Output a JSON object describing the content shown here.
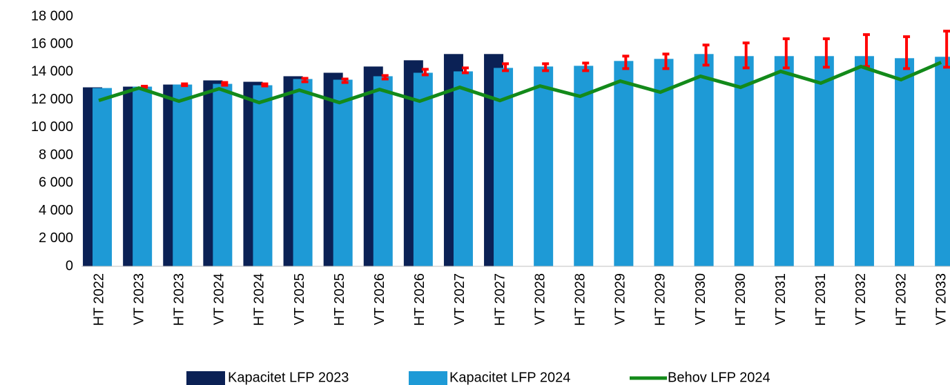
{
  "chart_data": {
    "type": "bar",
    "categories": [
      "HT 2022",
      "VT 2023",
      "HT 2023",
      "VT 2024",
      "HT 2024",
      "VT 2025",
      "HT 2025",
      "VT 2026",
      "HT 2026",
      "VT 2027",
      "HT 2027",
      "VT 2028",
      "HT 2028",
      "VT 2029",
      "HT 2029",
      "VT 2030",
      "HT 2030",
      "VT 2031",
      "HT 2031",
      "VT 2032",
      "HT 2032",
      "VT 2033"
    ],
    "series": [
      {
        "name": "Kapacitet LFP 2023",
        "type": "bar",
        "color": "#0b2155",
        "values": [
          12900,
          12950,
          13100,
          13400,
          13300,
          13700,
          13950,
          14400,
          14850,
          15300,
          15300,
          null,
          null,
          null,
          null,
          null,
          null,
          null,
          null,
          null,
          null,
          null
        ]
      },
      {
        "name": "Kapacitet LFP 2024",
        "type": "bar",
        "color": "#1e9ad6",
        "error_color": "#ff0000",
        "values": [
          12850,
          12950,
          13100,
          13150,
          13050,
          13500,
          13450,
          13700,
          13950,
          14050,
          14300,
          14400,
          14450,
          14800,
          14950,
          15300,
          15150,
          15150,
          15150,
          15150,
          15000,
          15100
        ],
        "error_minus": [
          null,
          50,
          80,
          100,
          50,
          200,
          200,
          200,
          150,
          100,
          200,
          300,
          350,
          550,
          700,
          800,
          850,
          850,
          800,
          750,
          750,
          750
        ],
        "error_plus": [
          null,
          30,
          50,
          100,
          100,
          50,
          50,
          50,
          250,
          250,
          300,
          200,
          200,
          350,
          350,
          650,
          950,
          1250,
          1250,
          1550,
          1550,
          1850
        ]
      },
      {
        "name": "Behov LFP 2024",
        "type": "line",
        "color": "#138a1a",
        "values": [
          11950,
          12850,
          11900,
          12800,
          11800,
          12700,
          11800,
          12750,
          11900,
          12900,
          11950,
          13000,
          12250,
          13350,
          12550,
          13700,
          12900,
          14050,
          13200,
          14400,
          13450,
          14700
        ]
      }
    ],
    "ylim": [
      0,
      18000
    ],
    "yticks": [
      0,
      {
        "value": 2000,
        "label": "2 000"
      },
      {
        "value": 4000,
        "label": "4 000"
      },
      {
        "value": 6000,
        "label": "6 000"
      },
      {
        "value": 8000,
        "label": "8 000"
      },
      {
        "value": 10000,
        "label": "10 000"
      },
      {
        "value": 12000,
        "label": "12 000"
      },
      {
        "value": 14000,
        "label": "14 000"
      },
      {
        "value": 16000,
        "label": "16 000"
      },
      {
        "value": 18000,
        "label": "18 000"
      }
    ],
    "grid": false,
    "legend": "bottom"
  }
}
